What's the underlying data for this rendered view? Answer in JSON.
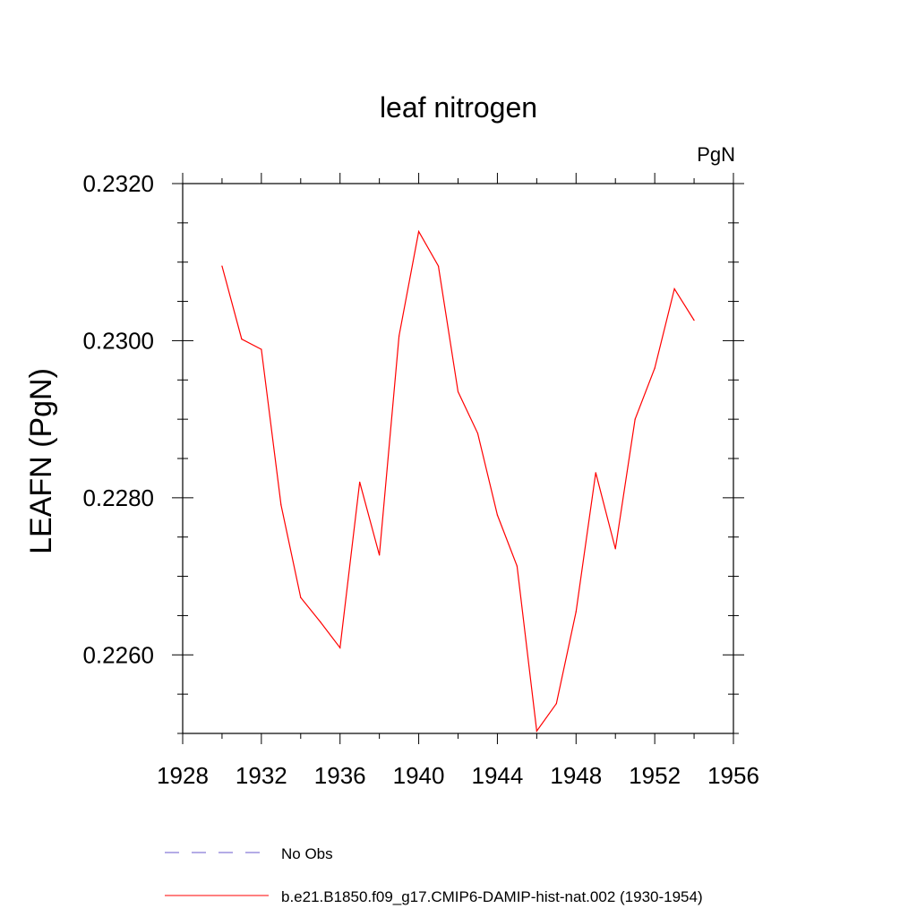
{
  "chart_data": {
    "type": "line",
    "title": "leaf nitrogen",
    "units_label": "PgN",
    "xlabel": "",
    "ylabel": "LEAFN  (PgN)",
    "xlim": [
      1928,
      1956
    ],
    "ylim": [
      0.225,
      0.232
    ],
    "x_ticks": [
      "1928",
      "1932",
      "1936",
      "1940",
      "1944",
      "1948",
      "1952",
      "1956"
    ],
    "y_ticks": [
      "0.2260",
      "0.2280",
      "0.2300",
      "0.2320"
    ],
    "grid": false,
    "legend_position": "bottom",
    "series": [
      {
        "name": "b.e21.B1850.f09_g17.CMIP6-DAMIP-hist-nat.002 (1930-1954)",
        "color": "#ff0000",
        "x": [
          1930,
          1931,
          1932,
          1933,
          1934,
          1935,
          1936,
          1937,
          1938,
          1939,
          1940,
          1941,
          1942,
          1943,
          1944,
          1945,
          1946,
          1947,
          1948,
          1949,
          1950,
          1951,
          1952,
          1953,
          1954
        ],
        "values": [
          0.23095,
          0.23002,
          0.22989,
          0.22791,
          0.22673,
          0.22642,
          0.22609,
          0.2282,
          0.22727,
          0.23006,
          0.23139,
          0.23095,
          0.22935,
          0.22882,
          0.22778,
          0.22713,
          0.22503,
          0.22538,
          0.22655,
          0.22832,
          0.22735,
          0.229,
          0.22965,
          0.23066,
          0.23026
        ]
      }
    ],
    "legend": [
      {
        "label": "No Obs",
        "color": "#6a5acd",
        "dash": true
      },
      {
        "label": "b.e21.B1850.f09_g17.CMIP6-DAMIP-hist-nat.002 (1930-1954)",
        "color": "#ff0000",
        "dash": false
      }
    ]
  }
}
